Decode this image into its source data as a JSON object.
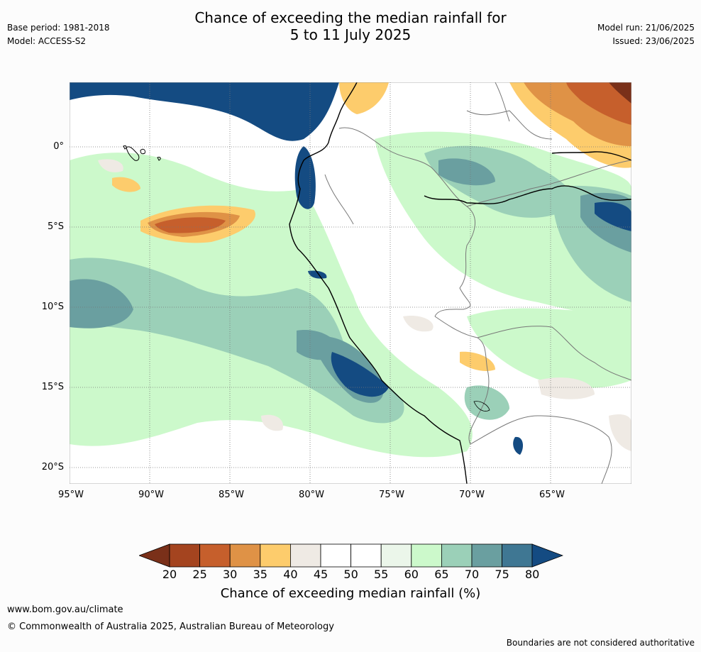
{
  "header": {
    "base_period": "Base period: 1981-2018",
    "model": "Model: ACCESS-S2",
    "title_line1": "Chance of exceeding the median rainfall for",
    "title_line2": "5 to 11 July 2025",
    "model_run": "Model run: 21/06/2025",
    "issued": "Issued: 23/06/2025"
  },
  "map": {
    "lat_labels": [
      "0°",
      "5°S",
      "10°S",
      "15°S",
      "20°S"
    ],
    "lon_labels": [
      "95°W",
      "90°W",
      "85°W",
      "80°W",
      "75°W",
      "70°W",
      "65°W"
    ]
  },
  "colorbar": {
    "ticks": [
      "20",
      "25",
      "30",
      "35",
      "40",
      "45",
      "50",
      "55",
      "60",
      "65",
      "70",
      "75",
      "80"
    ],
    "colors": [
      "#a4441f",
      "#c65f2c",
      "#df9246",
      "#fdcc6c",
      "#efeae4",
      "#ffffff",
      "#ffffff",
      "#ebf6ea",
      "#ccf9cb",
      "#9bd0b8",
      "#6a9fa0",
      "#3f7793"
    ],
    "low_color": "#7a3019",
    "high_color": "#144b82",
    "label": "Chance of exceeding median rainfall (%)"
  },
  "footer": {
    "website": "www.bom.gov.au/climate",
    "copyright": "© Commonwealth of Australia 2025, Australian Bureau of Meteorology",
    "disclaimer": "Boundaries are not considered authoritative"
  }
}
